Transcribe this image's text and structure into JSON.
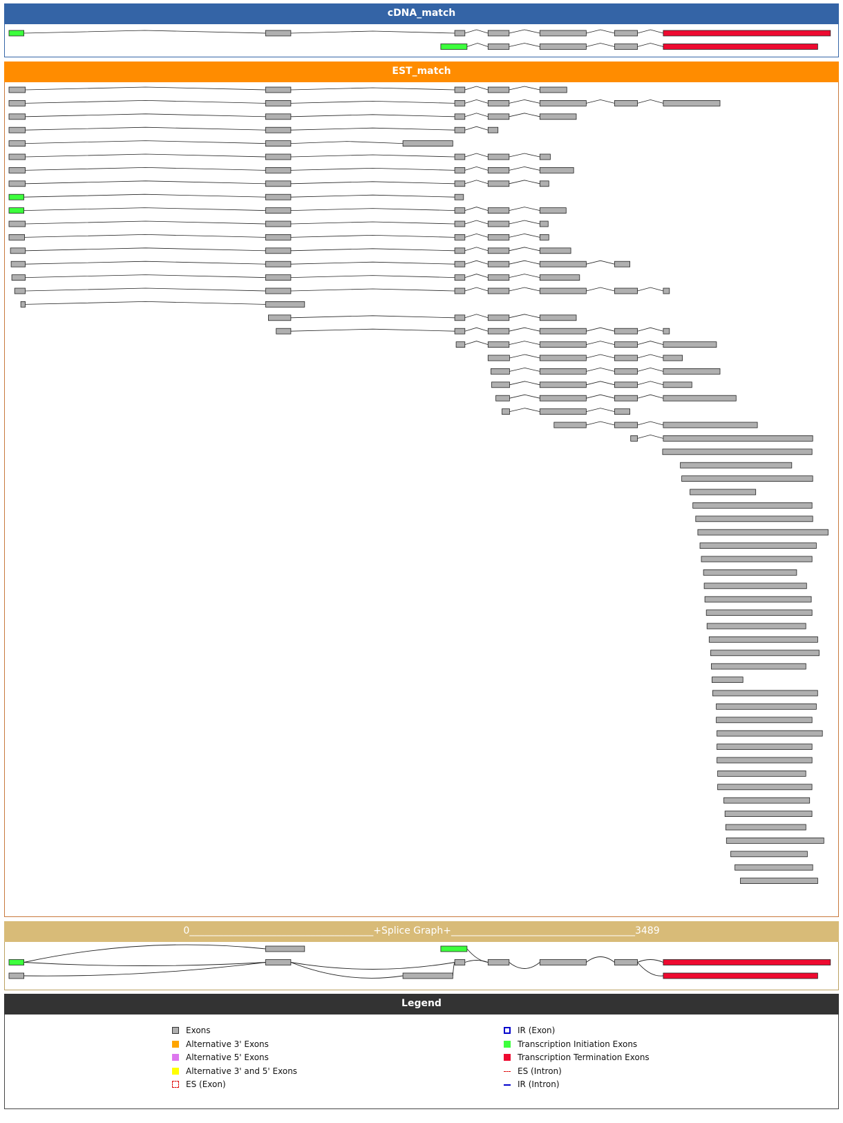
{
  "colors": {
    "exon": "#b0b0b0",
    "initiation": "#3dff3d",
    "termination": "#ee0a30",
    "cdna_header": "#3464a6",
    "est_header": "#ff8c00",
    "splice_header": "#d8bb78",
    "legend_header": "#333333",
    "alt3": "#ffa500",
    "alt5": "#dd77ee",
    "alt35": "#ffff00",
    "es": "#dd0000",
    "ir": "#0000cc"
  },
  "sections": {
    "cdna": {
      "title": "cDNA_match"
    },
    "est": {
      "title": "EST_match"
    },
    "splice": {
      "title": "0______________________________________+Splice Graph+______________________________________3489"
    },
    "legend": {
      "title": "Legend"
    }
  },
  "legend": {
    "left": [
      {
        "label": "Exons",
        "swatch": "exon"
      },
      {
        "label": "Alternative 3' Exons",
        "swatch": "alt3"
      },
      {
        "label": "Alternative 5' Exons",
        "swatch": "alt5"
      },
      {
        "label": "Alternative 3' and 5' Exons",
        "swatch": "alt35"
      },
      {
        "label": "ES (Exon)",
        "swatch": "es-exon"
      }
    ],
    "right": [
      {
        "label": "IR (Exon)",
        "swatch": "ir-exon"
      },
      {
        "label": "Transcription Initiation Exons",
        "swatch": "initiation"
      },
      {
        "label": "Transcription Termination Exons",
        "swatch": "termination"
      },
      {
        "label": "ES (Intron)",
        "swatch": "es-intron"
      },
      {
        "label": "IR (Intron)",
        "swatch": "ir-intron"
      }
    ]
  },
  "scale": {
    "start": 0,
    "end": 3489
  },
  "splice_graph": {
    "exons": [
      {
        "start": 0,
        "end": 63,
        "type": "initiation",
        "lane": 1
      },
      {
        "start": 0,
        "end": 63,
        "type": "exon",
        "lane": 2
      },
      {
        "start": 1085,
        "end": 1250,
        "type": "exon",
        "lane": 0
      },
      {
        "start": 1085,
        "end": 1192,
        "type": "exon",
        "lane": 1
      },
      {
        "start": 1666,
        "end": 1877,
        "type": "exon",
        "lane": 2
      },
      {
        "start": 1826,
        "end": 1937,
        "type": "initiation",
        "lane": 0
      },
      {
        "start": 1885,
        "end": 1928,
        "type": "exon",
        "lane": 1
      },
      {
        "start": 2026,
        "end": 2115,
        "type": "exon",
        "lane": 1
      },
      {
        "start": 2245,
        "end": 2441,
        "type": "exon",
        "lane": 1
      },
      {
        "start": 2561,
        "end": 2658,
        "type": "exon",
        "lane": 1
      },
      {
        "start": 2767,
        "end": 3474,
        "type": "termination",
        "lane": 1
      },
      {
        "start": 2767,
        "end": 3420,
        "type": "termination",
        "lane": 2
      }
    ]
  },
  "cdna_match": [
    [
      [
        0,
        63,
        "initiation"
      ],
      [
        1085,
        1192,
        "exon"
      ],
      [
        1885,
        1928,
        "exon"
      ],
      [
        2026,
        2115,
        "exon"
      ],
      [
        2245,
        2441,
        "exon"
      ],
      [
        2561,
        2658,
        "exon"
      ],
      [
        2767,
        3474,
        "termination"
      ]
    ],
    [
      [
        1826,
        1937,
        "initiation"
      ],
      [
        2026,
        2115,
        "exon"
      ],
      [
        2245,
        2441,
        "exon"
      ],
      [
        2561,
        2658,
        "exon"
      ],
      [
        2767,
        3420,
        "termination"
      ]
    ]
  ],
  "est_match": [
    [
      [
        0,
        69
      ],
      [
        1085,
        1192
      ],
      [
        1885,
        1928
      ],
      [
        2026,
        2115
      ],
      [
        2245,
        2359
      ]
    ],
    [
      [
        0,
        69
      ],
      [
        1085,
        1192
      ],
      [
        1885,
        1928
      ],
      [
        2026,
        2115
      ],
      [
        2245,
        2441
      ],
      [
        2561,
        2658
      ],
      [
        2767,
        3007
      ]
    ],
    [
      [
        0,
        69
      ],
      [
        1085,
        1192
      ],
      [
        1885,
        1928
      ],
      [
        2026,
        2115
      ],
      [
        2245,
        2399
      ]
    ],
    [
      [
        0,
        69
      ],
      [
        1085,
        1192
      ],
      [
        1885,
        1928
      ],
      [
        2026,
        2068
      ]
    ],
    [
      [
        0,
        69
      ],
      [
        1085,
        1192
      ],
      [
        1666,
        1877
      ]
    ],
    [
      [
        0,
        69
      ],
      [
        1085,
        1192
      ],
      [
        1885,
        1928
      ],
      [
        2026,
        2115
      ],
      [
        2245,
        2289
      ]
    ],
    [
      [
        0,
        69
      ],
      [
        1085,
        1192
      ],
      [
        1885,
        1928
      ],
      [
        2026,
        2115
      ],
      [
        2245,
        2388
      ]
    ],
    [
      [
        0,
        69
      ],
      [
        1085,
        1192
      ],
      [
        1885,
        1928
      ],
      [
        2026,
        2115
      ],
      [
        2245,
        2283
      ]
    ],
    [
      [
        0,
        63,
        "initiation"
      ],
      [
        1085,
        1192
      ],
      [
        1885,
        1922
      ]
    ],
    [
      [
        0,
        63,
        "initiation"
      ],
      [
        1085,
        1192
      ],
      [
        1885,
        1928
      ],
      [
        2026,
        2115
      ],
      [
        2245,
        2356
      ]
    ],
    [
      [
        0,
        69
      ],
      [
        1085,
        1192
      ],
      [
        1885,
        1928
      ],
      [
        2026,
        2115
      ],
      [
        2245,
        2280
      ]
    ],
    [
      [
        0,
        66
      ],
      [
        1085,
        1192
      ],
      [
        1885,
        1928
      ],
      [
        2026,
        2115
      ],
      [
        2245,
        2283
      ]
    ],
    [
      [
        6,
        69
      ],
      [
        1085,
        1192
      ],
      [
        1885,
        1928
      ],
      [
        2026,
        2115
      ],
      [
        2245,
        2376
      ]
    ],
    [
      [
        9,
        69
      ],
      [
        1085,
        1192
      ],
      [
        1885,
        1928
      ],
      [
        2026,
        2115
      ],
      [
        2245,
        2441
      ],
      [
        2561,
        2626
      ]
    ],
    [
      [
        12,
        69
      ],
      [
        1085,
        1192
      ],
      [
        1885,
        1928
      ],
      [
        2026,
        2115
      ],
      [
        2245,
        2413
      ]
    ],
    [
      [
        24,
        69
      ],
      [
        1085,
        1192
      ],
      [
        1885,
        1928
      ],
      [
        2026,
        2115
      ],
      [
        2245,
        2441
      ],
      [
        2561,
        2658
      ],
      [
        2767,
        2793
      ]
    ],
    [
      [
        50,
        69
      ],
      [
        1085,
        1250
      ]
    ],
    [
      [
        1097,
        1192
      ],
      [
        1885,
        1928
      ],
      [
        2026,
        2115
      ],
      [
        2245,
        2399
      ]
    ],
    [
      [
        1130,
        1192
      ],
      [
        1885,
        1928
      ],
      [
        2026,
        2115
      ],
      [
        2245,
        2441
      ],
      [
        2561,
        2658
      ],
      [
        2767,
        2793
      ]
    ],
    [
      [
        1891,
        1928
      ],
      [
        2026,
        2115
      ],
      [
        2245,
        2441
      ],
      [
        2561,
        2658
      ],
      [
        2767,
        2992
      ]
    ],
    [
      [
        2026,
        2117
      ],
      [
        2245,
        2441
      ],
      [
        2561,
        2658
      ],
      [
        2767,
        2848
      ]
    ],
    [
      [
        2038,
        2117
      ],
      [
        2245,
        2441
      ],
      [
        2561,
        2658
      ],
      [
        2767,
        3007
      ]
    ],
    [
      [
        2041,
        2117
      ],
      [
        2245,
        2441
      ],
      [
        2561,
        2658
      ],
      [
        2767,
        2888
      ]
    ],
    [
      [
        2059,
        2117
      ],
      [
        2245,
        2441
      ],
      [
        2561,
        2658
      ],
      [
        2767,
        3075
      ]
    ],
    [
      [
        2085,
        2117
      ],
      [
        2245,
        2441
      ],
      [
        2561,
        2626
      ]
    ],
    [
      [
        2305,
        2441
      ],
      [
        2561,
        2658
      ],
      [
        2767,
        3165
      ]
    ],
    [
      [
        2629,
        2658
      ],
      [
        2767,
        3399
      ]
    ],
    [
      [
        2764,
        3396
      ]
    ],
    [
      [
        2839,
        3310
      ]
    ],
    [
      [
        2845,
        3399
      ]
    ],
    [
      [
        2880,
        3158
      ]
    ],
    [
      [
        2892,
        3396
      ]
    ],
    [
      [
        2904,
        3399
      ]
    ],
    [
      [
        2913,
        3464
      ]
    ],
    [
      [
        2922,
        3414
      ]
    ],
    [
      [
        2928,
        3396
      ]
    ],
    [
      [
        2937,
        3331
      ]
    ],
    [
      [
        2940,
        3373
      ]
    ],
    [
      [
        2943,
        3393
      ]
    ],
    [
      [
        2949,
        3396
      ]
    ],
    [
      [
        2952,
        3370
      ]
    ],
    [
      [
        2961,
        3420
      ]
    ],
    [
      [
        2967,
        3426
      ]
    ],
    [
      [
        2970,
        3370
      ]
    ],
    [
      [
        2973,
        3104
      ]
    ],
    [
      [
        2976,
        3420
      ]
    ],
    [
      [
        2991,
        3414
      ]
    ],
    [
      [
        2991,
        3396
      ]
    ],
    [
      [
        2994,
        3440
      ]
    ],
    [
      [
        2994,
        3396
      ]
    ],
    [
      [
        2994,
        3396
      ]
    ],
    [
      [
        2997,
        3370
      ]
    ],
    [
      [
        2997,
        3396
      ]
    ],
    [
      [
        3023,
        3386
      ]
    ],
    [
      [
        3028,
        3396
      ]
    ],
    [
      [
        3031,
        3370
      ]
    ],
    [
      [
        3034,
        3446
      ]
    ],
    [
      [
        3052,
        3376
      ]
    ],
    [
      [
        3070,
        3399
      ]
    ],
    [
      [
        3093,
        3420
      ]
    ]
  ]
}
